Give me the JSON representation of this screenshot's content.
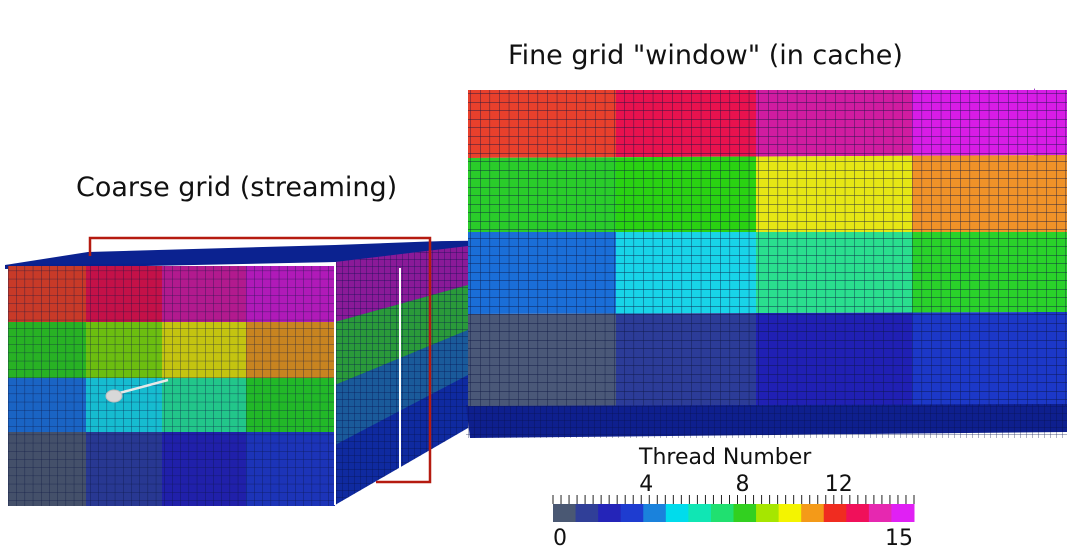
{
  "labels": {
    "fine_grid": "Fine grid \"window\" (in cache)",
    "coarse_grid": "Coarse grid (streaming)"
  },
  "colorbar": {
    "title": "Thread Number",
    "min_label": "0",
    "max_label": "15",
    "tick_labels": [
      "4",
      "8",
      "12"
    ],
    "tick_values": [
      4,
      8,
      12
    ],
    "min": 0,
    "max": 15,
    "colors": [
      "#4a5873",
      "#303f98",
      "#2424b8",
      "#1e3cd0",
      "#1a82dc",
      "#00dcec",
      "#10e6b4",
      "#20e070",
      "#32d020",
      "#a6e600",
      "#f4f400",
      "#f49a18",
      "#f02c20",
      "#f0105a",
      "#e628b0",
      "#e020f4"
    ]
  },
  "fine_grid_blocks": {
    "rows": [
      [
        "#e8402c",
        "#e8124e",
        "#d01ca0",
        "#d81ce6"
      ],
      [
        "#2acc2a",
        "#2ad212",
        "#e6e614",
        "#f09228"
      ],
      [
        "#1a6ed8",
        "#18d4e8",
        "#2ade8e",
        "#2ad22a"
      ],
      [
        "#4a5878",
        "#2c3c98",
        "#2020b4",
        "#1c38c8"
      ]
    ]
  },
  "coarse_grid_blocks": {
    "rows": [
      [
        "#c83a28",
        "#c41148",
        "#b21a8e",
        "#b01ab8"
      ],
      [
        "#28b224",
        "#6cbe10",
        "#c4c410",
        "#c88420"
      ],
      [
        "#1a64c4",
        "#16bcd0",
        "#22c68a",
        "#22b828"
      ],
      [
        "#44506a",
        "#283892",
        "#2020aa",
        "#1c34b8"
      ]
    ],
    "top_color": "#0a1f8c",
    "side_color": "#0f2aa0"
  }
}
